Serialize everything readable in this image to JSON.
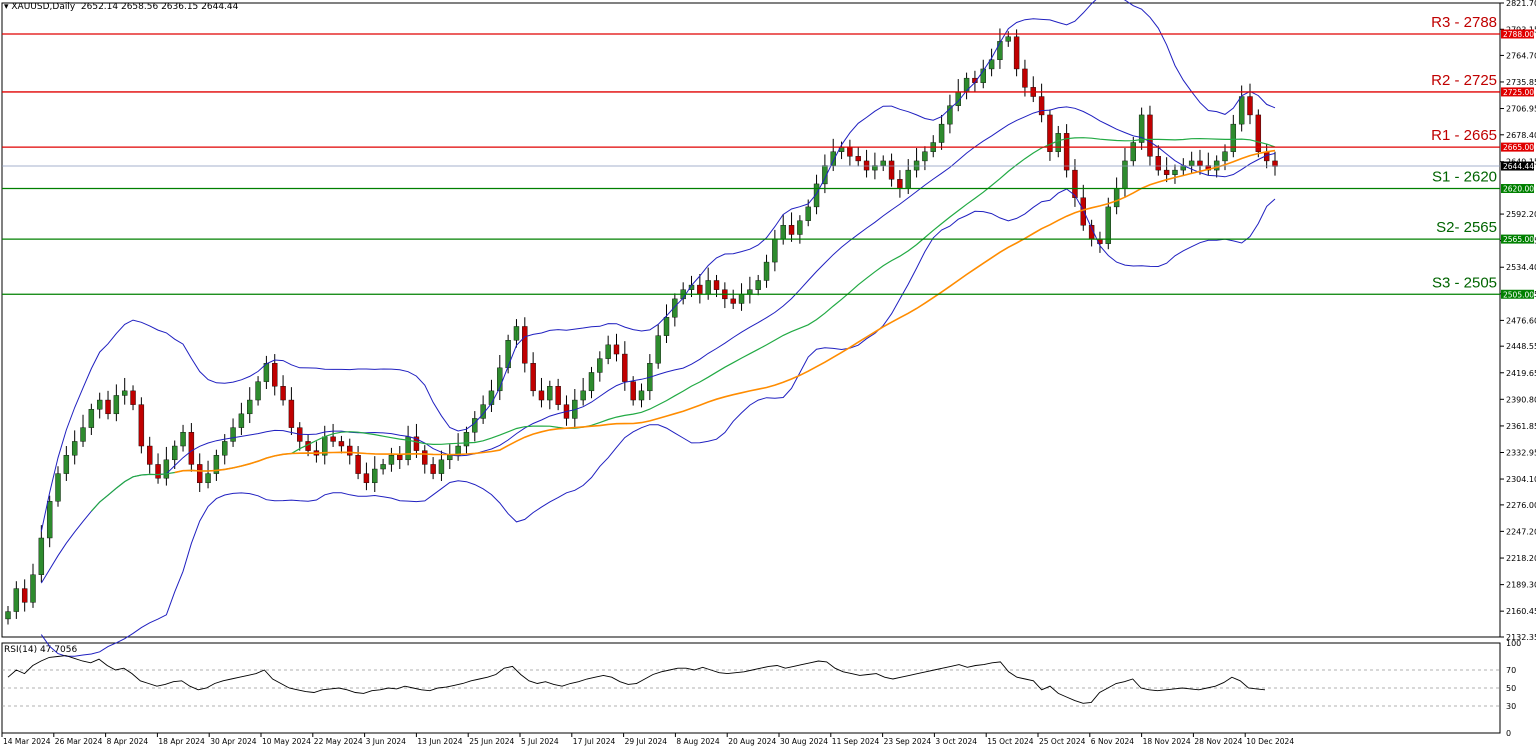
{
  "header": {
    "symbol": "XAUUSD,Daily",
    "ohlc": "2652.14 2658.56 2636.15 2644.44",
    "indicator": "RSI(14) 47.7056"
  },
  "colors": {
    "bull": "#2e8b2e",
    "bear": "#c00000",
    "resistance": "#e00000",
    "support": "#008000",
    "bollinger": "#2020c0",
    "ma_fast": "#22aa44",
    "ma_slow": "#ff8c00",
    "price_tag": "#000000"
  },
  "chart_data": [
    {
      "type": "candlestick",
      "title": "XAUUSD,Daily",
      "ylim": [
        2132.35,
        2821.7
      ],
      "price_axis_ticks": [
        "2821.70",
        "2793.15",
        "2764.70",
        "2735.85",
        "2706.95",
        "2678.40",
        "2649.15",
        "2592.20",
        "2563.35",
        "2534.40",
        "2505.45",
        "2476.60",
        "2448.55",
        "2419.65",
        "2390.80",
        "2361.85",
        "2332.95",
        "2304.10",
        "2276.00",
        "2247.20",
        "2218.20",
        "2189.30",
        "2160.45",
        "2132.35"
      ],
      "x_tick_labels": [
        "14 Mar 2024",
        "26 Mar 2024",
        "8 Apr 2024",
        "18 Apr 2024",
        "30 Apr 2024",
        "10 May 2024",
        "22 May 2024",
        "3 Jun 2024",
        "13 Jun 2024",
        "25 Jun 2024",
        "5 Jul 2024",
        "17 Jul 2024",
        "29 Jul 2024",
        "8 Aug 2024",
        "20 Aug 2024",
        "30 Aug 2024",
        "11 Sep 2024",
        "23 Sep 2024",
        "3 Oct 2024",
        "15 Oct 2024",
        "25 Oct 2024",
        "6 Nov 2024",
        "18 Nov 2024",
        "28 Nov 2024",
        "10 Dec 2024"
      ],
      "price_trajectory": [
        2160,
        2185,
        2170,
        2200,
        2240,
        2280,
        2310,
        2330,
        2345,
        2360,
        2380,
        2390,
        2375,
        2395,
        2400,
        2385,
        2340,
        2320,
        2305,
        2325,
        2340,
        2355,
        2320,
        2300,
        2310,
        2330,
        2345,
        2360,
        2375,
        2390,
        2410,
        2430,
        2405,
        2390,
        2360,
        2345,
        2335,
        2330,
        2350,
        2345,
        2340,
        2330,
        2310,
        2300,
        2315,
        2320,
        2330,
        2325,
        2350,
        2335,
        2320,
        2310,
        2325,
        2330,
        2340,
        2355,
        2370,
        2385,
        2400,
        2425,
        2455,
        2470,
        2430,
        2400,
        2390,
        2405,
        2385,
        2370,
        2390,
        2400,
        2420,
        2435,
        2450,
        2440,
        2410,
        2390,
        2400,
        2430,
        2460,
        2480,
        2500,
        2510,
        2515,
        2505,
        2520,
        2510,
        2500,
        2495,
        2505,
        2510,
        2520,
        2540,
        2565,
        2580,
        2570,
        2585,
        2600,
        2625,
        2645,
        2660,
        2665,
        2655,
        2650,
        2640,
        2645,
        2650,
        2630,
        2620,
        2640,
        2650,
        2660,
        2670,
        2690,
        2710,
        2725,
        2740,
        2735,
        2750,
        2760,
        2780,
        2785,
        2750,
        2730,
        2720,
        2700,
        2660,
        2680,
        2640,
        2610,
        2580,
        2565,
        2560,
        2600,
        2620,
        2650,
        2670,
        2700,
        2655,
        2640,
        2635,
        2640,
        2645,
        2650,
        2645,
        2640,
        2650,
        2660,
        2690,
        2720,
        2700,
        2660,
        2650,
        2644
      ],
      "resistance_support": [
        {
          "label": "R3 - 2788",
          "value": 2788,
          "tag": "2788.00",
          "kind": "resistance"
        },
        {
          "label": "R2 - 2725",
          "value": 2725,
          "tag": "2725.00",
          "kind": "resistance"
        },
        {
          "label": "R1 - 2665",
          "value": 2665,
          "tag": "2665.00",
          "kind": "resistance"
        },
        {
          "label": "S1 - 2620",
          "value": 2620,
          "tag": "2620.00",
          "kind": "support"
        },
        {
          "label": "S2- 2565",
          "value": 2565,
          "tag": "2565.00",
          "kind": "support"
        },
        {
          "label": "S3 - 2505",
          "value": 2505,
          "tag": "2505.00",
          "kind": "support"
        }
      ],
      "current_price": {
        "value": 2644.44,
        "tag": "2644.44"
      },
      "indicators": [
        "Bollinger Bands",
        "Moving Average (fast)",
        "Moving Average (slow)"
      ]
    },
    {
      "type": "line",
      "title": "RSI(14) 47.7056",
      "ylim": [
        0,
        100
      ],
      "axis_ticks": [
        "100",
        "70",
        "50",
        "30",
        "0"
      ],
      "levels": [
        70,
        50,
        30
      ],
      "series": [
        {
          "name": "RSI(14)",
          "values": [
            62,
            70,
            66,
            75,
            80,
            84,
            85,
            86,
            83,
            80,
            78,
            82,
            75,
            70,
            72,
            66,
            58,
            55,
            52,
            54,
            57,
            58,
            52,
            48,
            50,
            55,
            58,
            60,
            62,
            64,
            66,
            70,
            60,
            55,
            50,
            48,
            46,
            45,
            48,
            49,
            50,
            48,
            45,
            44,
            47,
            48,
            50,
            49,
            52,
            50,
            48,
            47,
            50,
            51,
            53,
            55,
            58,
            60,
            62,
            65,
            72,
            74,
            65,
            58,
            55,
            57,
            54,
            52,
            55,
            57,
            60,
            62,
            64,
            62,
            57,
            54,
            55,
            60,
            65,
            68,
            70,
            72,
            72,
            70,
            73,
            70,
            67,
            66,
            67,
            68,
            70,
            72,
            74,
            75,
            72,
            74,
            76,
            78,
            80,
            79,
            72,
            68,
            66,
            64,
            65,
            66,
            62,
            60,
            62,
            64,
            66,
            68,
            70,
            72,
            74,
            76,
            73,
            75,
            76,
            78,
            79,
            68,
            62,
            60,
            58,
            48,
            52,
            44,
            40,
            36,
            33,
            34,
            45,
            50,
            55,
            57,
            60,
            50,
            48,
            47,
            48,
            49,
            50,
            49,
            48,
            50,
            52,
            56,
            62,
            58,
            50,
            49,
            48
          ]
        }
      ]
    }
  ]
}
